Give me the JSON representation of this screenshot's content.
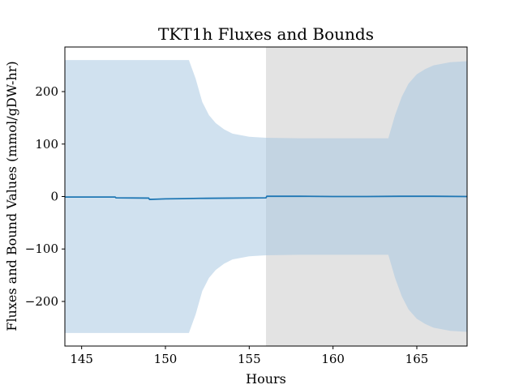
{
  "chart_data": {
    "type": "area",
    "title": "TKT1h Fluxes and Bounds",
    "xlabel": "Hours",
    "ylabel": "Fluxes and Bound Values (mmol/gDW-hr)",
    "xlim": [
      144,
      168
    ],
    "ylim": [
      -285,
      285
    ],
    "xticks": [
      145,
      150,
      155,
      160,
      165
    ],
    "yticks": [
      -200,
      -100,
      0,
      100,
      200
    ],
    "xtick_labels": [
      "145",
      "150",
      "155",
      "160",
      "165"
    ],
    "ytick_labels": [
      "−200",
      "−100",
      "0",
      "100",
      "200"
    ],
    "grid": false,
    "shaded_region": {
      "x_start": 156,
      "x_end": 168,
      "color": "#e3e3e3"
    },
    "bounds": {
      "color": "#a9c9e1",
      "x": [
        144,
        146,
        148,
        150,
        151.4,
        151.8,
        152.2,
        152.6,
        153,
        153.5,
        154,
        155,
        156,
        158,
        160,
        162,
        163.3,
        163.7,
        164.1,
        164.5,
        165,
        165.5,
        166,
        167,
        168
      ],
      "upper": [
        260,
        260,
        260,
        260,
        260,
        225,
        180,
        155,
        140,
        128,
        120,
        114,
        112,
        111,
        111,
        111,
        111,
        155,
        190,
        215,
        233,
        243,
        250,
        256,
        258
      ],
      "lower": [
        -260,
        -260,
        -260,
        -260,
        -260,
        -225,
        -180,
        -155,
        -140,
        -128,
        -120,
        -114,
        -112,
        -111,
        -111,
        -111,
        -111,
        -155,
        -190,
        -215,
        -233,
        -243,
        -250,
        -256,
        -258
      ]
    },
    "series": [
      {
        "color": "#1f77b4",
        "x": [
          144,
          145,
          147,
          147.05,
          149,
          149.05,
          149.5,
          150,
          151,
          152,
          154,
          156,
          156.05,
          158,
          160,
          162,
          164,
          166,
          168
        ],
        "values": [
          -1,
          -1,
          -1,
          -2.5,
          -3,
          -5.5,
          -5,
          -4.5,
          -4,
          -3.5,
          -3,
          -2.5,
          0.5,
          0.5,
          0,
          0,
          0.5,
          0.5,
          0
        ]
      }
    ]
  }
}
